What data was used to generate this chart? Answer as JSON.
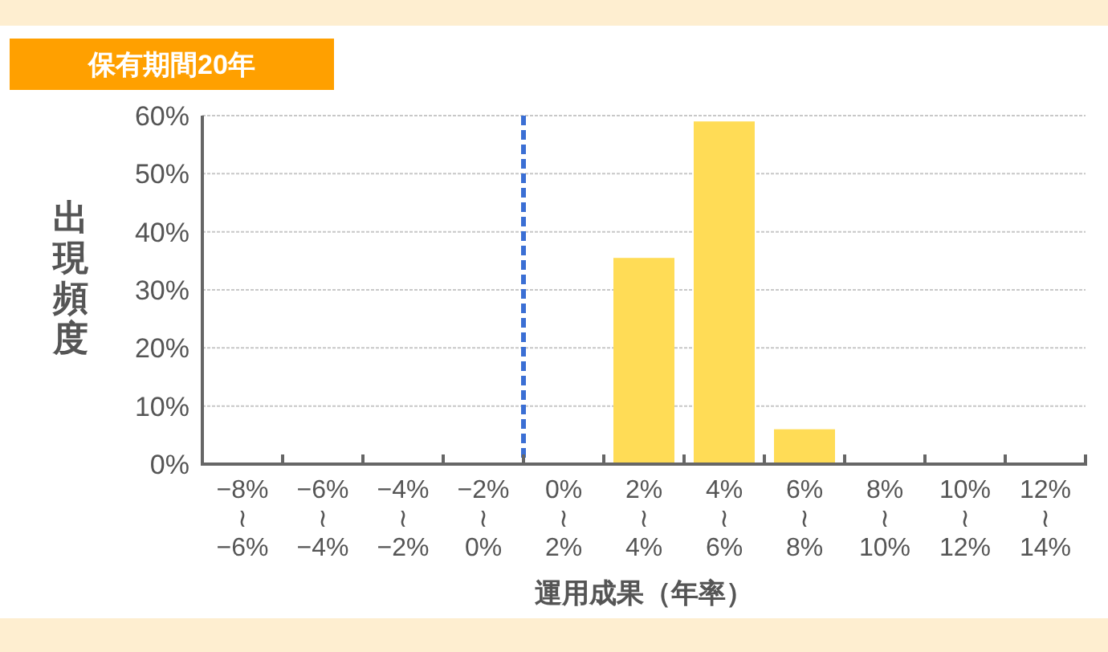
{
  "chart_data": {
    "type": "bar",
    "title": "保有期間20年",
    "xlabel": "運用成果（年率）",
    "ylabel": "出現頻度",
    "categories": [
      "−8%\n≀\n−6%",
      "−6%\n≀\n−4%",
      "−4%\n≀\n−2%",
      "−2%\n≀\n0%",
      "0%\n≀\n2%",
      "2%\n≀\n4%",
      "4%\n≀\n6%",
      "6%\n≀\n8%",
      "8%\n≀\n10%",
      "10%\n≀\n12%",
      "12%\n≀\n14%"
    ],
    "values": [
      0,
      0,
      0,
      0,
      0,
      35.5,
      59,
      6,
      0,
      0,
      0
    ],
    "color": "#ffdc56",
    "ylim": [
      0,
      60
    ],
    "yticks": [
      {
        "value": 0,
        "label": "0%"
      },
      {
        "value": 10,
        "label": "10%"
      },
      {
        "value": 20,
        "label": "20%"
      },
      {
        "value": 30,
        "label": "30%"
      },
      {
        "value": 40,
        "label": "40%"
      },
      {
        "value": 50,
        "label": "50%"
      },
      {
        "value": 60,
        "label": "60%"
      }
    ],
    "grid": "y",
    "ref_lines": [
      {
        "axis": "x",
        "value": "0%\n≀\n2%",
        "color": "#3b6fd4",
        "line_style": "dashed"
      }
    ]
  }
}
